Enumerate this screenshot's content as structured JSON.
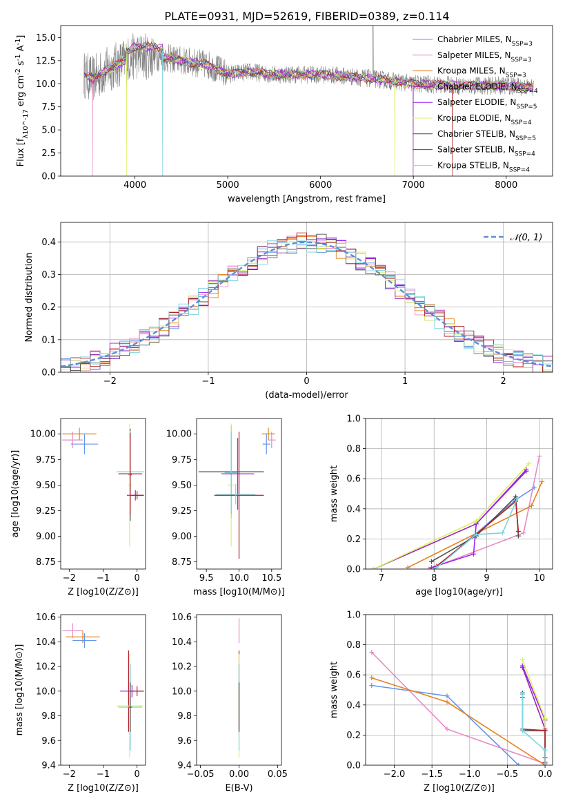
{
  "figure_title": "PLATE=0931, MJD=52619, FIBERID=0389, z=0.114",
  "colors": {
    "chabrier_miles": "#6495ed",
    "salpeter_miles": "#e78ac3",
    "kroupa_miles": "#e6821e",
    "chabrier_elodie": "#9c27b0",
    "salpeter_elodie": "#a020f0",
    "kroupa_elodie": "#d9f261",
    "chabrier_stelib": "#4d4d4d",
    "salpeter_stelib": "#b22222",
    "kroupa_stelib": "#7fd3e0",
    "data": "#808080",
    "normal": "#5b8fd6"
  },
  "chart_data": [
    {
      "id": "spectrum",
      "type": "line",
      "xlabel": "wavelength [Angstrom, rest frame]",
      "ylabel": "Flux [f_λ10^-17 erg cm^-2 s^-1 A^-1]",
      "xlim": [
        3200,
        8500
      ],
      "ylim": [
        0,
        16.3
      ],
      "xticks": [
        4000,
        5000,
        6000,
        7000,
        8000
      ],
      "yticks": [
        0.0,
        2.5,
        5.0,
        7.5,
        10.0,
        12.5,
        15.0
      ],
      "legend_position": "top-right",
      "series": [
        {
          "name": "Chabrier MILES, N_SSP=3",
          "key": "chabrier_miles"
        },
        {
          "name": "Salpeter MILES, N_SSP=3",
          "key": "salpeter_miles"
        },
        {
          "name": "Kroupa MILES, N_SSP=3",
          "key": "kroupa_miles"
        },
        {
          "name": "Chabrier ELODIE, N_SSP=4",
          "key": "chabrier_elodie"
        },
        {
          "name": "Salpeter ELODIE, N_SSP=5",
          "key": "salpeter_elodie"
        },
        {
          "name": "Kroupa ELODIE, N_SSP=4",
          "key": "kroupa_elodie"
        },
        {
          "name": "Chabrier STELIB, N_SSP=5",
          "key": "chabrier_stelib"
        },
        {
          "name": "Salpeter STELIB, N_SSP=4",
          "key": "salpeter_stelib"
        },
        {
          "name": "Kroupa STELIB, N_SSP=4",
          "key": "kroupa_stelib"
        }
      ],
      "continuum": [
        [
          3450,
          11.0
        ],
        [
          3550,
          10.5
        ],
        [
          3700,
          11.5
        ],
        [
          3900,
          12.5
        ],
        [
          4000,
          13.0
        ],
        [
          4200,
          13.0
        ],
        [
          4500,
          12.5
        ],
        [
          4800,
          12.0
        ],
        [
          5000,
          11.0
        ],
        [
          5200,
          11.3
        ],
        [
          5500,
          11.0
        ],
        [
          6000,
          11.0
        ],
        [
          6300,
          10.8
        ],
        [
          6600,
          10.5
        ],
        [
          7000,
          10.0
        ],
        [
          7500,
          9.8
        ],
        [
          8000,
          9.8
        ],
        [
          8300,
          9.6
        ]
      ]
    },
    {
      "id": "residuals",
      "type": "step",
      "xlabel": "(data-model)/error",
      "ylabel": "Normed distribution",
      "xlim": [
        -2.5,
        2.5
      ],
      "ylim": [
        0,
        0.46
      ],
      "xticks": [
        -2,
        -1,
        0,
        1,
        2
      ],
      "yticks": [
        0.0,
        0.1,
        0.2,
        0.3,
        0.4
      ],
      "grid": true,
      "legend": "𝒩(0, 1)",
      "legend_position": "top-right"
    },
    {
      "id": "age_vs_Z",
      "type": "errorbar",
      "xlabel": "Z [log10(Z/Z⊙)]",
      "ylabel": "age  [log10(age/yr)]",
      "xlim": [
        -2.25,
        0.25
      ],
      "ylim": [
        8.68,
        10.15
      ],
      "xticks": [
        -2,
        -1,
        0
      ],
      "yticks": [
        8.75,
        9.0,
        9.25,
        9.5,
        9.75,
        10.0
      ],
      "points": [
        {
          "key": "salpeter_miles",
          "x": -1.9,
          "xerr": 0.3,
          "y": 9.94,
          "yerr": 0.08
        },
        {
          "key": "kroupa_miles",
          "x": -1.7,
          "xerr": 0.5,
          "y": 10.0,
          "yerr": 0.06
        },
        {
          "key": "chabrier_miles",
          "x": -1.55,
          "xerr": 0.4,
          "y": 9.9,
          "yerr": 0.1
        },
        {
          "key": "chabrier_stelib",
          "x": -0.2,
          "xerr": 0.05,
          "y": 9.6,
          "yerr": 0.45
        },
        {
          "key": "kroupa_elodie",
          "x": -0.22,
          "xerr": 0.05,
          "y": 9.5,
          "yerr": 0.6
        },
        {
          "key": "kroupa_stelib",
          "x": -0.2,
          "xerr": 0.4,
          "y": 9.63,
          "yerr": 0.4
        },
        {
          "key": "salpeter_stelib",
          "x": -0.2,
          "xerr": 0.35,
          "y": 9.61,
          "yerr": 0.4
        },
        {
          "key": "salpeter_elodie",
          "x": -0.05,
          "xerr": 0.25,
          "y": 9.4,
          "yerr": 0.05
        },
        {
          "key": "salpeter_stelib",
          "x": 0.0,
          "xerr": 0.2,
          "y": 9.4,
          "yerr": 0.04
        }
      ]
    },
    {
      "id": "age_vs_mass",
      "type": "errorbar",
      "xlabel": "mass [log10(M/M⊙)]",
      "ylabel": "",
      "xlim": [
        9.35,
        10.65
      ],
      "ylim": [
        8.68,
        10.15
      ],
      "xticks": [
        9.5,
        10.0,
        10.5
      ],
      "yticks": [
        8.75,
        9.0,
        9.25,
        9.5,
        9.75,
        10.0
      ],
      "points": [
        {
          "key": "salpeter_miles",
          "x": 10.5,
          "xerr": 0.06,
          "y": 9.94,
          "yerr": 0.08
        },
        {
          "key": "kroupa_miles",
          "x": 10.45,
          "xerr": 0.1,
          "y": 10.0,
          "yerr": 0.06
        },
        {
          "key": "chabrier_miles",
          "x": 10.42,
          "xerr": 0.06,
          "y": 9.9,
          "yerr": 0.1
        },
        {
          "key": "chabrier_stelib",
          "x": 9.88,
          "xerr": 0.5,
          "y": 9.63,
          "yerr": 0.45
        },
        {
          "key": "kroupa_elodie",
          "x": 9.88,
          "xerr": 0.05,
          "y": 9.5,
          "yerr": 0.6
        },
        {
          "key": "kroupa_stelib",
          "x": 9.88,
          "xerr": 0.1,
          "y": 9.62,
          "yerr": 0.4
        },
        {
          "key": "salpeter_elodie",
          "x": 9.98,
          "xerr": 0.25,
          "y": 9.61,
          "yerr": 0.35
        },
        {
          "key": "salpeter_stelib",
          "x": 10.0,
          "xerr": 0.38,
          "y": 9.4,
          "yerr": 0.62
        },
        {
          "key": "kroupa_stelib",
          "x": 9.95,
          "xerr": 0.3,
          "y": 9.41,
          "yerr": 0.1
        }
      ]
    },
    {
      "id": "weight_vs_age",
      "type": "line",
      "xlabel": "age  [log10(age/yr)]",
      "ylabel": "mass weight",
      "xlim": [
        6.7,
        10.25
      ],
      "ylim": [
        0,
        1.0
      ],
      "xticks": [
        7,
        8,
        9,
        10
      ],
      "yticks": [
        0.0,
        0.2,
        0.4,
        0.6,
        0.8,
        1.0
      ],
      "grid": true,
      "series": [
        {
          "key": "chabrier_miles",
          "x": [
            8.0,
            9.55,
            9.9
          ],
          "y": [
            0.0,
            0.46,
            0.54
          ]
        },
        {
          "key": "salpeter_miles",
          "x": [
            7.9,
            9.7,
            10.0
          ],
          "y": [
            0.0,
            0.24,
            0.75
          ]
        },
        {
          "key": "kroupa_miles",
          "x": [
            7.5,
            9.85,
            10.05
          ],
          "y": [
            0.01,
            0.42,
            0.58
          ]
        },
        {
          "key": "chabrier_elodie",
          "x": [
            6.85,
            8.8,
            9.75
          ],
          "y": [
            0.0,
            0.3,
            0.65
          ]
        },
        {
          "key": "salpeter_elodie",
          "x": [
            7.95,
            8.75,
            8.8,
            9.75
          ],
          "y": [
            0.01,
            0.1,
            0.3,
            0.66
          ]
        },
        {
          "key": "kroupa_elodie",
          "x": [
            6.85,
            8.8,
            9.8
          ],
          "y": [
            0.0,
            0.32,
            0.7
          ]
        },
        {
          "key": "chabrier_stelib",
          "x": [
            7.95,
            8.8,
            9.55,
            9.6
          ],
          "y": [
            0.05,
            0.22,
            0.48,
            0.22
          ]
        },
        {
          "key": "salpeter_stelib",
          "x": [
            8.05,
            8.8,
            9.55,
            9.6
          ],
          "y": [
            0.02,
            0.23,
            0.45,
            0.25
          ]
        },
        {
          "key": "kroupa_stelib",
          "x": [
            8.05,
            8.8,
            9.3,
            9.58
          ],
          "y": [
            0.01,
            0.23,
            0.24,
            0.47
          ]
        }
      ]
    },
    {
      "id": "mass_vs_Z",
      "type": "errorbar",
      "xlabel": "Z [log10(Z/Z⊙)]",
      "ylabel": "mass [log10(M/M⊙)]",
      "xlim": [
        -2.25,
        0.25
      ],
      "ylim": [
        9.4,
        10.62
      ],
      "xticks": [
        -2,
        -1,
        0
      ],
      "yticks": [
        9.4,
        9.6,
        9.8,
        10.0,
        10.2,
        10.4,
        10.6
      ],
      "points": [
        {
          "key": "salpeter_miles",
          "x": -1.9,
          "xerr": 0.3,
          "y": 10.49,
          "yerr": 0.06
        },
        {
          "key": "kroupa_miles",
          "x": -1.6,
          "xerr": 0.5,
          "y": 10.44,
          "yerr": 0.05
        },
        {
          "key": "chabrier_miles",
          "x": -1.55,
          "xerr": 0.35,
          "y": 10.41,
          "yerr": 0.06
        },
        {
          "key": "salpeter_stelib",
          "x": -0.25,
          "xerr": 0.04,
          "y": 10.0,
          "yerr": 0.33
        },
        {
          "key": "kroupa_elodie",
          "x": -0.22,
          "xerr": 0.4,
          "y": 9.88,
          "yerr": 0.42
        },
        {
          "key": "kroupa_stelib",
          "x": -0.2,
          "xerr": 0.35,
          "y": 9.87,
          "yerr": 0.35
        },
        {
          "key": "salpeter_elodie",
          "x": -0.15,
          "xerr": 0.35,
          "y": 10.0,
          "yerr": 0.05
        },
        {
          "key": "salpeter_stelib",
          "x": 0.0,
          "xerr": 0.2,
          "y": 10.0,
          "yerr": 0.04
        },
        {
          "key": "chabrier_stelib",
          "x": -0.2,
          "xerr": 0.05,
          "y": 9.87,
          "yerr": 0.2
        }
      ]
    },
    {
      "id": "mass_vs_ebv",
      "type": "errorbar",
      "xlabel": "E(B-V)",
      "ylabel": "",
      "xlim": [
        -0.055,
        0.055
      ],
      "ylim": [
        9.4,
        10.62
      ],
      "xticks": [
        -0.05,
        0.0,
        0.05
      ],
      "yticks": [
        9.4,
        9.6,
        9.8,
        10.0,
        10.2,
        10.4,
        10.6
      ],
      "points": [
        {
          "key": "salpeter_miles",
          "x": 0.0,
          "xerr": 0.0,
          "y": 10.49,
          "yerr": 0.1
        },
        {
          "key": "salpeter_stelib",
          "x": 0.0,
          "xerr": 0.0,
          "y": 10.0,
          "yerr": 0.33
        },
        {
          "key": "kroupa_elodie",
          "x": 0.0,
          "xerr": 0.0,
          "y": 9.88,
          "yerr": 0.42
        },
        {
          "key": "kroupa_stelib",
          "x": 0.0,
          "xerr": 0.0,
          "y": 9.87,
          "yerr": 0.35
        },
        {
          "key": "chabrier_stelib",
          "x": 0.0,
          "xerr": 0.0,
          "y": 9.87,
          "yerr": 0.2
        }
      ]
    },
    {
      "id": "weight_vs_Z",
      "type": "line",
      "xlabel": "Z [log10(Z/Z⊙)]",
      "ylabel": "mass weight",
      "xlim": [
        -2.38,
        0.1
      ],
      "ylim": [
        0,
        1.0
      ],
      "xticks": [
        -2.0,
        -1.5,
        -1.0,
        -0.5,
        0.0
      ],
      "yticks": [
        0.0,
        0.2,
        0.4,
        0.6,
        0.8,
        1.0
      ],
      "grid": true,
      "series": [
        {
          "key": "chabrier_miles",
          "x": [
            -2.3,
            -1.3,
            -0.35
          ],
          "y": [
            0.53,
            0.46,
            0.0
          ]
        },
        {
          "key": "salpeter_miles",
          "x": [
            -2.3,
            -1.3,
            0.0
          ],
          "y": [
            0.75,
            0.24,
            0.01
          ]
        },
        {
          "key": "kroupa_miles",
          "x": [
            -2.3,
            -1.3,
            0.0
          ],
          "y": [
            0.58,
            0.42,
            0.0
          ]
        },
        {
          "key": "chabrier_elodie",
          "x": [
            -0.3,
            0.0,
            0.0
          ],
          "y": [
            0.65,
            0.24,
            0.0
          ]
        },
        {
          "key": "salpeter_elodie",
          "x": [
            -0.3,
            0.0,
            0.0
          ],
          "y": [
            0.66,
            0.3,
            0.02
          ]
        },
        {
          "key": "kroupa_elodie",
          "x": [
            -0.3,
            0.0,
            0.0
          ],
          "y": [
            0.7,
            0.31,
            0.0
          ]
        },
        {
          "key": "chabrier_stelib",
          "x": [
            -0.3,
            -0.3,
            0.0,
            0.0
          ],
          "y": [
            0.48,
            0.23,
            0.23,
            0.05
          ]
        },
        {
          "key": "salpeter_stelib",
          "x": [
            -0.3,
            -0.3,
            0.0,
            0.0
          ],
          "y": [
            0.45,
            0.24,
            0.23,
            0.02
          ]
        },
        {
          "key": "kroupa_stelib",
          "x": [
            -0.3,
            -0.3,
            0.0,
            0.0
          ],
          "y": [
            0.47,
            0.23,
            0.1,
            0.0
          ]
        }
      ]
    }
  ]
}
